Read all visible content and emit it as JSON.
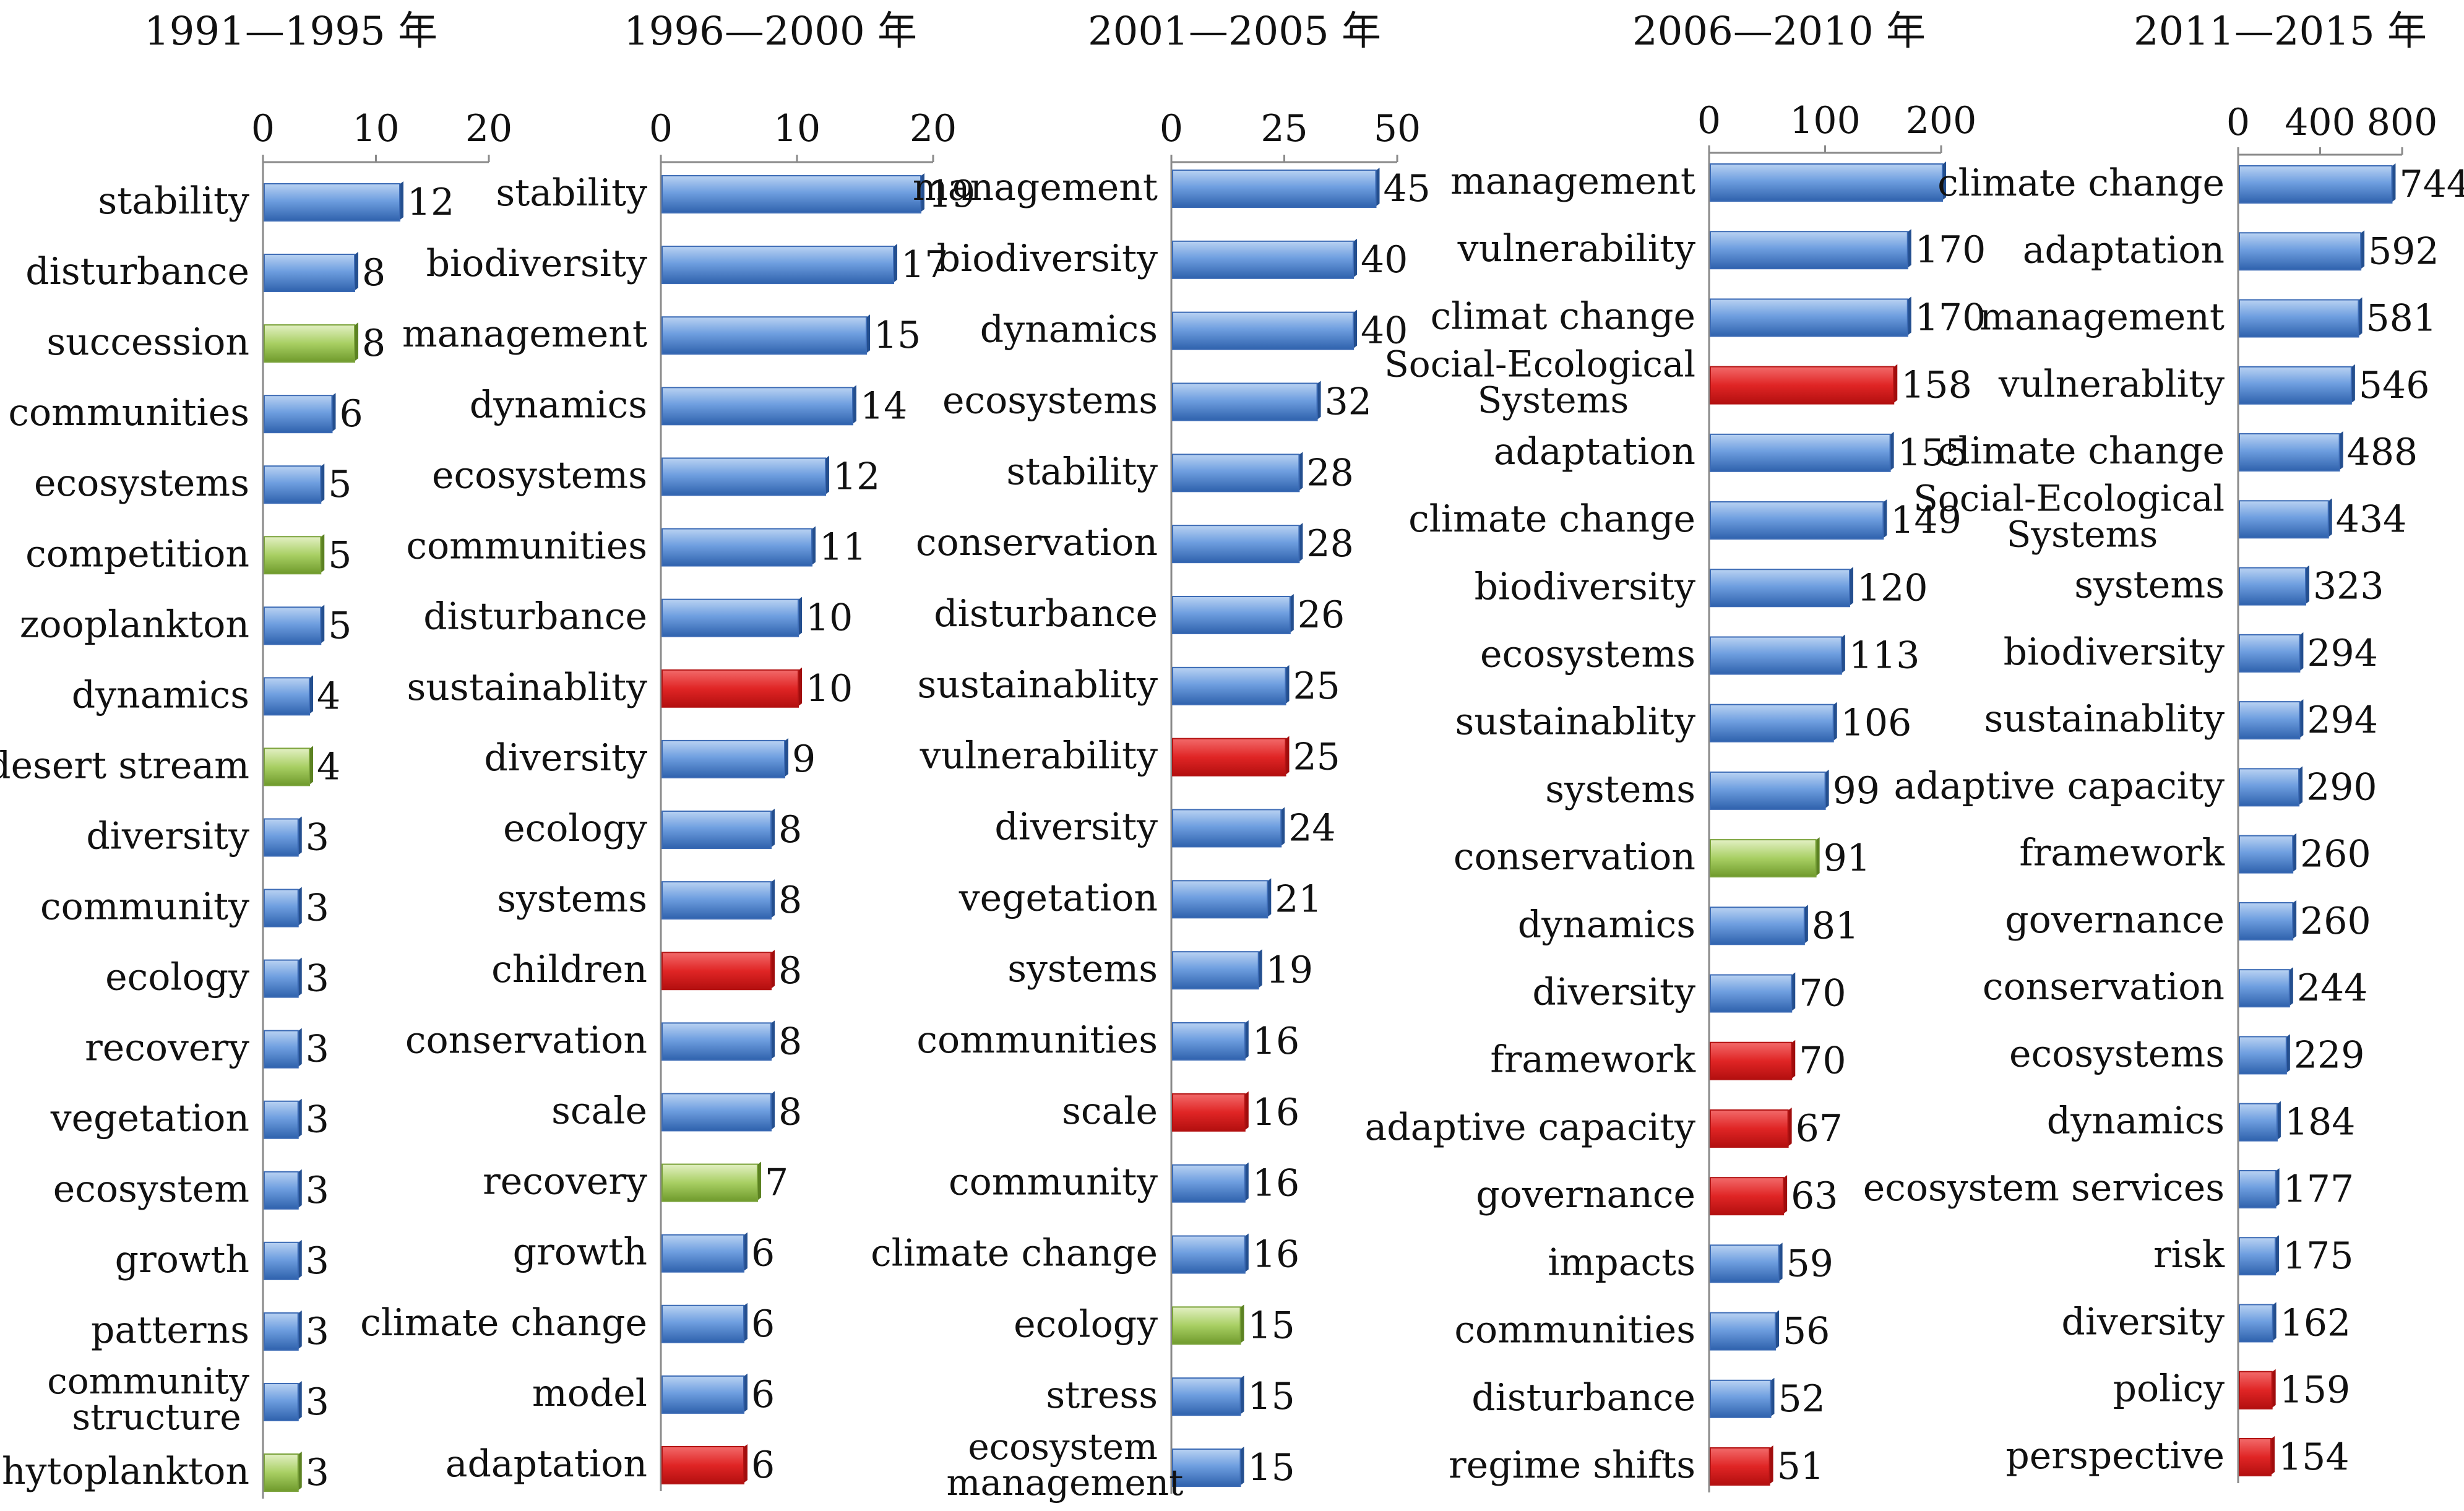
{
  "chart_data": [
    {
      "type": "bar",
      "title": "1991—1995 年",
      "xlim": [
        0,
        20
      ],
      "ticks": [
        0,
        10,
        20
      ],
      "categories": [
        "stability",
        "disturbance",
        "succession",
        "communities",
        "ecosystems",
        "competition",
        "zooplankton",
        "dynamics",
        "desert stream",
        "diversity",
        "community",
        "ecology",
        "recovery",
        "vegetation",
        "ecosystem",
        "growth",
        "patterns",
        "community structure",
        "phytoplankton"
      ],
      "values": [
        12,
        8,
        8,
        6,
        5,
        5,
        5,
        4,
        4,
        3,
        3,
        3,
        3,
        3,
        3,
        3,
        3,
        3,
        3
      ],
      "colors": [
        "blue",
        "blue",
        "green",
        "blue",
        "blue",
        "green",
        "blue",
        "blue",
        "green",
        "blue",
        "blue",
        "blue",
        "blue",
        "blue",
        "blue",
        "blue",
        "blue",
        "blue",
        "green"
      ]
    },
    {
      "type": "bar",
      "title": "1996—2000 年",
      "xlim": [
        0,
        20
      ],
      "ticks": [
        0,
        10,
        20
      ],
      "categories": [
        "stability",
        "biodiversity",
        "management",
        "dynamics",
        "ecosystems",
        "communities",
        "disturbance",
        "sustainablity",
        "diversity",
        "ecology",
        "systems",
        "children",
        "conservation",
        "scale",
        "recovery",
        "growth",
        "climate change",
        "model",
        "adaptation"
      ],
      "values": [
        19,
        17,
        15,
        14,
        12,
        11,
        10,
        10,
        9,
        8,
        8,
        8,
        8,
        8,
        7,
        6,
        6,
        6,
        6
      ],
      "colors": [
        "blue",
        "blue",
        "blue",
        "blue",
        "blue",
        "blue",
        "blue",
        "red",
        "blue",
        "blue",
        "blue",
        "red",
        "blue",
        "blue",
        "green",
        "blue",
        "blue",
        "blue",
        "red"
      ]
    },
    {
      "type": "bar",
      "title": "2001—2005 年",
      "xlim": [
        0,
        50
      ],
      "ticks": [
        0,
        25,
        50
      ],
      "categories": [
        "management",
        "biodiversity",
        "dynamics",
        "ecosystems",
        "stability",
        "conservation",
        "disturbance",
        "sustainablity",
        "vulnerability",
        "diversity",
        "vegetation",
        "systems",
        "communities",
        "scale",
        "community",
        "climate change",
        "ecology",
        "stress",
        "ecosystem management"
      ],
      "values": [
        45,
        40,
        40,
        32,
        28,
        28,
        26,
        25,
        25,
        24,
        21,
        19,
        16,
        16,
        16,
        16,
        15,
        15,
        15
      ],
      "colors": [
        "blue",
        "blue",
        "blue",
        "blue",
        "blue",
        "blue",
        "blue",
        "blue",
        "red",
        "blue",
        "blue",
        "blue",
        "blue",
        "red",
        "blue",
        "blue",
        "green",
        "blue",
        "blue"
      ]
    },
    {
      "type": "bar",
      "title": "2006—2010 年",
      "xlim": [
        0,
        200
      ],
      "ticks": [
        0,
        100,
        200
      ],
      "categories": [
        "management",
        "vulnerability",
        "climat change",
        "Social-Ecological Systems",
        "adaptation",
        "climate change",
        "biodiversity",
        "ecosystems",
        "sustainablity",
        "systems",
        "conservation",
        "dynamics",
        "diversity",
        "framework",
        "adaptive capacity",
        "governance",
        "impacts",
        "communities",
        "disturbance",
        "regime shifts"
      ],
      "values": [
        200,
        170,
        170,
        158,
        155,
        149,
        120,
        113,
        106,
        99,
        91,
        81,
        70,
        70,
        67,
        63,
        59,
        56,
        52,
        51
      ],
      "value_labels": [
        "",
        "170",
        "170",
        "158",
        "155",
        "149",
        "120",
        "113",
        "106",
        "99",
        "91",
        "81",
        "70",
        "70",
        "67",
        "63",
        "59",
        "56",
        "52",
        "51"
      ],
      "colors": [
        "blue",
        "blue",
        "blue",
        "red",
        "blue",
        "blue",
        "blue",
        "blue",
        "blue",
        "blue",
        "green",
        "blue",
        "blue",
        "red",
        "red",
        "red",
        "blue",
        "blue",
        "blue",
        "red"
      ]
    },
    {
      "type": "bar",
      "title": "2011—2015 年",
      "xlim": [
        0,
        800
      ],
      "ticks": [
        0,
        400,
        800
      ],
      "categories": [
        "climate change",
        "adaptation",
        "management",
        "vulnerablity",
        "climate change",
        "Social-Ecological Systems",
        "systems",
        "biodiversity",
        "sustainablity",
        "adaptive capacity",
        "framework",
        "governance",
        "conservation",
        "ecosystems",
        "dynamics",
        "ecosystem services",
        "risk",
        "diversity",
        "policy",
        "perspective"
      ],
      "values": [
        744,
        592,
        581,
        546,
        488,
        434,
        323,
        294,
        294,
        290,
        260,
        260,
        244,
        229,
        184,
        177,
        175,
        162,
        159,
        154
      ],
      "colors": [
        "blue",
        "blue",
        "blue",
        "blue",
        "blue",
        "blue",
        "blue",
        "blue",
        "blue",
        "blue",
        "blue",
        "blue",
        "blue",
        "blue",
        "blue",
        "blue",
        "blue",
        "blue",
        "red",
        "red"
      ]
    }
  ],
  "colors": {
    "blue": "#5b8fd3",
    "green": "#9bc25a",
    "red": "#e02525"
  }
}
